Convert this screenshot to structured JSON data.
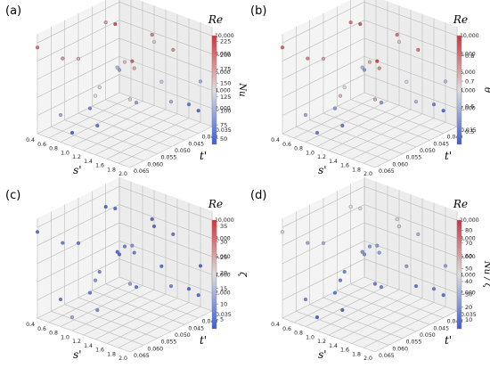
{
  "colors": {
    "low": "#3b5bdb",
    "mid": "#dddddd",
    "high": "#d6303a",
    "grid": "#bbbbbb",
    "pane": "#f4f4f4"
  },
  "panels": [
    {
      "label": "(a)",
      "chart_data": {
        "type": "scatter",
        "x_label": "s'",
        "y_label": "t'",
        "z_label": "Re",
        "x_ticks": [
          "0.4",
          "0.6",
          "0.8",
          "1.0",
          "1.2",
          "1.4",
          "1.6",
          "1.8",
          "2.0"
        ],
        "y_ticks": [
          "0.035",
          "0.040",
          "0.045",
          "0.050",
          "0.055",
          "0.060",
          "0.065"
        ],
        "z_ticks": [
          "2,000",
          "4,000",
          "6,000",
          "8,000",
          "10,000"
        ],
        "colorbar_label": "Nu",
        "colorbar_ticks": [
          "50",
          "75",
          "100",
          "125",
          "150",
          "175",
          "200",
          "225"
        ],
        "colorbar_range": [
          40,
          235
        ],
        "points": [
          {
            "x": 0.4,
            "y": 0.035,
            "z": 9500,
            "c": 200
          },
          {
            "x": 0.4,
            "y": 0.05,
            "z": 6000,
            "c": 170
          },
          {
            "x": 0.4,
            "y": 0.065,
            "z": 2500,
            "c": 90
          },
          {
            "x": 0.6,
            "y": 0.04,
            "z": 8000,
            "c": 180
          },
          {
            "x": 0.6,
            "y": 0.06,
            "z": 4000,
            "c": 110
          },
          {
            "x": 0.8,
            "y": 0.035,
            "z": 3000,
            "c": 100
          },
          {
            "x": 0.8,
            "y": 0.055,
            "z": 10000,
            "c": 220
          },
          {
            "x": 1.0,
            "y": 0.045,
            "z": 5000,
            "c": 130
          },
          {
            "x": 1.0,
            "y": 0.065,
            "z": 7000,
            "c": 150
          },
          {
            "x": 1.2,
            "y": 0.04,
            "z": 2000,
            "c": 60
          },
          {
            "x": 1.2,
            "y": 0.06,
            "z": 9000,
            "c": 190
          },
          {
            "x": 1.4,
            "y": 0.05,
            "z": 3500,
            "c": 90
          },
          {
            "x": 1.4,
            "y": 0.035,
            "z": 6500,
            "c": 140
          },
          {
            "x": 1.6,
            "y": 0.055,
            "z": 5500,
            "c": 120
          },
          {
            "x": 1.6,
            "y": 0.045,
            "z": 8500,
            "c": 170
          },
          {
            "x": 1.8,
            "y": 0.065,
            "z": 4500,
            "c": 100
          },
          {
            "x": 1.8,
            "y": 0.04,
            "z": 10500,
            "c": 210
          },
          {
            "x": 2.0,
            "y": 0.06,
            "z": 2500,
            "c": 55
          },
          {
            "x": 2.0,
            "y": 0.035,
            "z": 7500,
            "c": 150
          },
          {
            "x": 1.0,
            "y": 0.035,
            "z": 1500,
            "c": 50
          },
          {
            "x": 1.6,
            "y": 0.065,
            "z": 1500,
            "c": 60
          },
          {
            "x": 0.6,
            "y": 0.05,
            "z": 1000,
            "c": 70
          },
          {
            "x": 1.2,
            "y": 0.05,
            "z": 7500,
            "c": 160
          },
          {
            "x": 1.8,
            "y": 0.055,
            "z": 9500,
            "c": 185
          },
          {
            "x": 0.4,
            "y": 0.06,
            "z": 8500,
            "c": 175
          },
          {
            "x": 2.0,
            "y": 0.05,
            "z": 5000,
            "c": 100
          }
        ]
      }
    },
    {
      "label": "(b)",
      "chart_data": {
        "type": "scatter",
        "x_label": "s'",
        "y_label": "t'",
        "z_label": "Re",
        "x_ticks": [
          "0.4",
          "0.6",
          "0.8",
          "1.0",
          "1.2",
          "1.4",
          "1.6",
          "1.8",
          "2.0"
        ],
        "y_ticks": [
          "0.035",
          "0.040",
          "0.045",
          "0.050",
          "0.055",
          "0.060",
          "0.065"
        ],
        "z_ticks": [
          "2,000",
          "4,000",
          "6,000",
          "8,000",
          "10,000"
        ],
        "colorbar_label": "θ",
        "colorbar_ticks": [
          "0.5",
          "0.6",
          "0.7",
          "0.8"
        ],
        "colorbar_range": [
          0.45,
          0.88
        ],
        "points": [
          {
            "x": 0.4,
            "y": 0.035,
            "z": 9500,
            "c": 0.82
          },
          {
            "x": 0.4,
            "y": 0.05,
            "z": 6000,
            "c": 0.75
          },
          {
            "x": 0.4,
            "y": 0.065,
            "z": 2500,
            "c": 0.55
          },
          {
            "x": 0.6,
            "y": 0.04,
            "z": 8000,
            "c": 0.78
          },
          {
            "x": 0.6,
            "y": 0.06,
            "z": 4000,
            "c": 0.6
          },
          {
            "x": 0.8,
            "y": 0.035,
            "z": 3000,
            "c": 0.58
          },
          {
            "x": 0.8,
            "y": 0.055,
            "z": 10000,
            "c": 0.84
          },
          {
            "x": 1.0,
            "y": 0.045,
            "z": 5000,
            "c": 0.66
          },
          {
            "x": 1.0,
            "y": 0.065,
            "z": 7000,
            "c": 0.7
          },
          {
            "x": 1.2,
            "y": 0.04,
            "z": 2000,
            "c": 0.5
          },
          {
            "x": 1.2,
            "y": 0.06,
            "z": 9000,
            "c": 0.8
          },
          {
            "x": 1.4,
            "y": 0.05,
            "z": 3500,
            "c": 0.55
          },
          {
            "x": 1.4,
            "y": 0.035,
            "z": 6500,
            "c": 0.72
          },
          {
            "x": 1.6,
            "y": 0.055,
            "z": 5500,
            "c": 0.65
          },
          {
            "x": 1.6,
            "y": 0.045,
            "z": 8500,
            "c": 0.77
          },
          {
            "x": 1.8,
            "y": 0.065,
            "z": 4500,
            "c": 0.6
          },
          {
            "x": 1.8,
            "y": 0.04,
            "z": 10500,
            "c": 0.85
          },
          {
            "x": 2.0,
            "y": 0.06,
            "z": 2500,
            "c": 0.48
          },
          {
            "x": 2.0,
            "y": 0.035,
            "z": 7500,
            "c": 0.74
          },
          {
            "x": 1.0,
            "y": 0.035,
            "z": 1500,
            "c": 0.5
          },
          {
            "x": 1.6,
            "y": 0.065,
            "z": 1500,
            "c": 0.52
          },
          {
            "x": 0.6,
            "y": 0.05,
            "z": 1000,
            "c": 0.55
          },
          {
            "x": 1.2,
            "y": 0.05,
            "z": 7500,
            "c": 0.73
          },
          {
            "x": 1.8,
            "y": 0.055,
            "z": 9500,
            "c": 0.8
          },
          {
            "x": 0.4,
            "y": 0.06,
            "z": 8500,
            "c": 0.79
          },
          {
            "x": 2.0,
            "y": 0.05,
            "z": 5000,
            "c": 0.6
          }
        ]
      }
    },
    {
      "label": "(c)",
      "chart_data": {
        "type": "scatter",
        "x_label": "s'",
        "y_label": "t'",
        "z_label": "Re",
        "x_ticks": [
          "0.4",
          "0.6",
          "0.8",
          "1.0",
          "1.2",
          "1.4",
          "1.6",
          "1.8",
          "2.0"
        ],
        "y_ticks": [
          "0.035",
          "0.040",
          "0.045",
          "0.050",
          "0.055",
          "0.060",
          "0.065"
        ],
        "z_ticks": [
          "2,000",
          "4,000",
          "6,000",
          "8,000",
          "10,000"
        ],
        "colorbar_label": "ζ",
        "colorbar_ticks": [
          "5",
          "10",
          "15",
          "20",
          "25",
          "30",
          "35"
        ],
        "colorbar_range": [
          2,
          37
        ],
        "points": [
          {
            "x": 0.4,
            "y": 0.035,
            "z": 9500,
            "c": 5
          },
          {
            "x": 0.4,
            "y": 0.05,
            "z": 6000,
            "c": 6
          },
          {
            "x": 0.4,
            "y": 0.065,
            "z": 2500,
            "c": 4
          },
          {
            "x": 0.6,
            "y": 0.04,
            "z": 8000,
            "c": 7
          },
          {
            "x": 0.6,
            "y": 0.06,
            "z": 4000,
            "c": 5
          },
          {
            "x": 0.8,
            "y": 0.035,
            "z": 3000,
            "c": 6
          },
          {
            "x": 0.8,
            "y": 0.055,
            "z": 10000,
            "c": 5
          },
          {
            "x": 1.0,
            "y": 0.045,
            "z": 5000,
            "c": 8
          },
          {
            "x": 1.0,
            "y": 0.065,
            "z": 7000,
            "c": 4
          },
          {
            "x": 1.2,
            "y": 0.04,
            "z": 2000,
            "c": 9
          },
          {
            "x": 1.2,
            "y": 0.06,
            "z": 9000,
            "c": 4
          },
          {
            "x": 1.4,
            "y": 0.05,
            "z": 3500,
            "c": 6
          },
          {
            "x": 1.4,
            "y": 0.035,
            "z": 6500,
            "c": 10
          },
          {
            "x": 1.6,
            "y": 0.055,
            "z": 5500,
            "c": 5
          },
          {
            "x": 1.6,
            "y": 0.045,
            "z": 8500,
            "c": 7
          },
          {
            "x": 1.8,
            "y": 0.065,
            "z": 4500,
            "c": 4
          },
          {
            "x": 1.8,
            "y": 0.04,
            "z": 10500,
            "c": 9
          },
          {
            "x": 2.0,
            "y": 0.06,
            "z": 2500,
            "c": 5
          },
          {
            "x": 2.0,
            "y": 0.035,
            "z": 7500,
            "c": 11
          },
          {
            "x": 1.0,
            "y": 0.035,
            "z": 1500,
            "c": 12
          },
          {
            "x": 1.6,
            "y": 0.065,
            "z": 1500,
            "c": 4
          },
          {
            "x": 0.6,
            "y": 0.05,
            "z": 1000,
            "c": 6
          },
          {
            "x": 1.2,
            "y": 0.05,
            "z": 7500,
            "c": 7
          },
          {
            "x": 1.8,
            "y": 0.055,
            "z": 9500,
            "c": 6
          },
          {
            "x": 0.4,
            "y": 0.06,
            "z": 8500,
            "c": 4
          },
          {
            "x": 2.0,
            "y": 0.05,
            "z": 5000,
            "c": 8
          }
        ]
      }
    },
    {
      "label": "(d)",
      "chart_data": {
        "type": "scatter",
        "x_label": "s'",
        "y_label": "t'",
        "z_label": "Re",
        "x_ticks": [
          "0.4",
          "0.6",
          "0.8",
          "1.0",
          "1.2",
          "1.4",
          "1.6",
          "1.8",
          "2.0"
        ],
        "y_ticks": [
          "0.035",
          "0.040",
          "0.045",
          "0.050",
          "0.055",
          "0.060",
          "0.065"
        ],
        "z_ticks": [
          "2,000",
          "4,000",
          "6,000",
          "8,000",
          "10,000"
        ],
        "colorbar_label": "Nu / ζ",
        "colorbar_ticks": [
          "10",
          "20",
          "30",
          "40",
          "50",
          "60",
          "70",
          "80"
        ],
        "colorbar_range": [
          3,
          88
        ],
        "points": [
          {
            "x": 0.4,
            "y": 0.035,
            "z": 9500,
            "c": 40
          },
          {
            "x": 0.4,
            "y": 0.05,
            "z": 6000,
            "c": 30
          },
          {
            "x": 0.4,
            "y": 0.065,
            "z": 2500,
            "c": 20
          },
          {
            "x": 0.6,
            "y": 0.04,
            "z": 8000,
            "c": 28
          },
          {
            "x": 0.6,
            "y": 0.06,
            "z": 4000,
            "c": 22
          },
          {
            "x": 0.8,
            "y": 0.035,
            "z": 3000,
            "c": 18
          },
          {
            "x": 0.8,
            "y": 0.055,
            "z": 10000,
            "c": 45
          },
          {
            "x": 1.0,
            "y": 0.045,
            "z": 5000,
            "c": 17
          },
          {
            "x": 1.0,
            "y": 0.065,
            "z": 7000,
            "c": 38
          },
          {
            "x": 1.2,
            "y": 0.04,
            "z": 2000,
            "c": 7
          },
          {
            "x": 1.2,
            "y": 0.06,
            "z": 9000,
            "c": 48
          },
          {
            "x": 1.4,
            "y": 0.05,
            "z": 3500,
            "c": 15
          },
          {
            "x": 1.4,
            "y": 0.035,
            "z": 6500,
            "c": 14
          },
          {
            "x": 1.6,
            "y": 0.055,
            "z": 5500,
            "c": 24
          },
          {
            "x": 1.6,
            "y": 0.045,
            "z": 8500,
            "c": 25
          },
          {
            "x": 1.8,
            "y": 0.065,
            "z": 4500,
            "c": 25
          },
          {
            "x": 1.8,
            "y": 0.04,
            "z": 10500,
            "c": 23
          },
          {
            "x": 2.0,
            "y": 0.06,
            "z": 2500,
            "c": 11
          },
          {
            "x": 2.0,
            "y": 0.035,
            "z": 7500,
            "c": 14
          },
          {
            "x": 1.0,
            "y": 0.035,
            "z": 1500,
            "c": 5
          },
          {
            "x": 1.6,
            "y": 0.065,
            "z": 1500,
            "c": 15
          },
          {
            "x": 0.6,
            "y": 0.05,
            "z": 1000,
            "c": 12
          },
          {
            "x": 1.2,
            "y": 0.05,
            "z": 7500,
            "c": 23
          },
          {
            "x": 1.8,
            "y": 0.055,
            "z": 9500,
            "c": 31
          },
          {
            "x": 0.4,
            "y": 0.06,
            "z": 8500,
            "c": 44
          },
          {
            "x": 2.0,
            "y": 0.05,
            "z": 5000,
            "c": 12
          }
        ]
      }
    }
  ]
}
